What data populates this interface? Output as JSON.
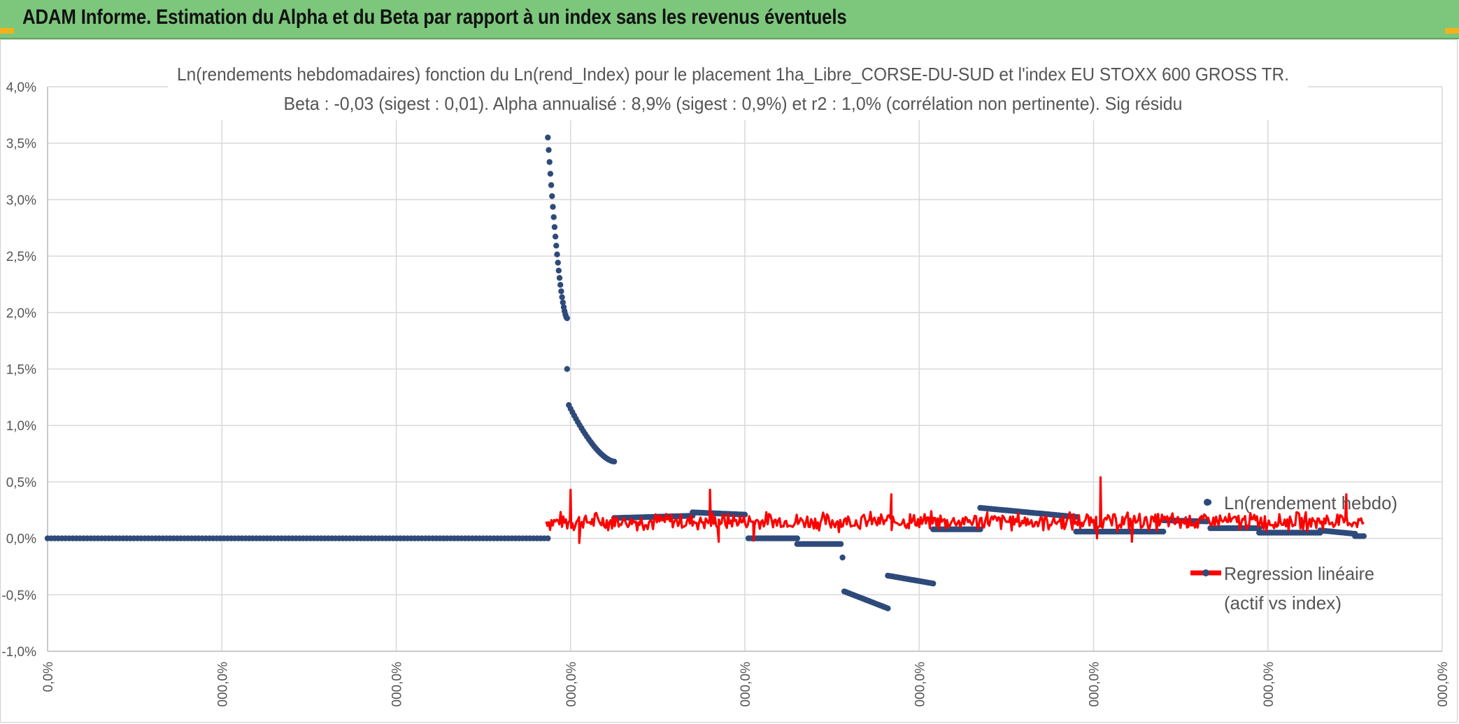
{
  "header": {
    "title": "ADAM Informe. Estimation du Alpha et du Beta par rapport à un index sans les revenus éventuels"
  },
  "colors": {
    "banner": "#7cc77c",
    "scatter": "#2e4a7a",
    "regression": "#ff0000",
    "grid": "#d9d9d9"
  },
  "chart_data": {
    "type": "scatter",
    "title_lines": [
      "Ln(rendements hebdomadaires) fonction du Ln(rend_Index) pour le placement 1ha_Libre_CORSE-DU-SUD et l'index EU STOXX 600 GROSS TR.",
      "Beta : -0,03 (sigest : 0,01). Alpha annualisé : 8,9% (sigest : 0,9%) et r2 : 1,0% (corrélation non pertinente). Sig résidu"
    ],
    "ylim": [
      -1.0,
      4.0
    ],
    "y_ticks": [
      -1.0,
      -0.5,
      0.0,
      0.5,
      1.0,
      1.5,
      2.0,
      2.5,
      3.0,
      3.5,
      4.0
    ],
    "y_tick_labels": [
      "-1,0%",
      "-0,5%",
      "0,0%",
      "0,5%",
      "1,0%",
      "1,5%",
      "2,0%",
      "2,5%",
      "3,0%",
      "3,5%",
      "4,0%"
    ],
    "xlim": [
      0,
      8
    ],
    "x_tick_labels": [
      "0,0%",
      "000,0%",
      "000,0%",
      "000,0%",
      "000,0%",
      "000,0%",
      "000,0%",
      "000,0%",
      "000,0%"
    ],
    "series": [
      {
        "name": "Ln(rendement hebdo)",
        "kind": "scatter",
        "segments": [
          {
            "x0": 0.0,
            "x1": 2.87,
            "y0": 0.0,
            "y1": 0.0,
            "n": 140
          },
          {
            "x0": 2.87,
            "x1": 2.98,
            "y0": 3.55,
            "y1": 1.95,
            "n": 24,
            "curve": "decay"
          },
          {
            "x0": 2.98,
            "x1": 2.99,
            "y0": 1.5,
            "y1": 1.5,
            "n": 1
          },
          {
            "x0": 2.99,
            "x1": 3.25,
            "y0": 1.18,
            "y1": 0.68,
            "n": 26,
            "curve": "decay"
          },
          {
            "x0": 3.25,
            "x1": 3.7,
            "y0": 0.18,
            "y1": 0.2,
            "n": 40
          },
          {
            "x0": 3.7,
            "x1": 4.0,
            "y0": 0.23,
            "y1": 0.21,
            "n": 30
          },
          {
            "x0": 4.02,
            "x1": 4.3,
            "y0": 0.0,
            "y1": 0.0,
            "n": 25
          },
          {
            "x0": 4.3,
            "x1": 4.55,
            "y0": -0.05,
            "y1": -0.05,
            "n": 22
          },
          {
            "x0": 4.56,
            "x1": 4.57,
            "y0": -0.17,
            "y1": -0.17,
            "n": 1
          },
          {
            "x0": 4.57,
            "x1": 4.82,
            "y0": -0.47,
            "y1": -0.62,
            "n": 24
          },
          {
            "x0": 4.82,
            "x1": 5.08,
            "y0": -0.33,
            "y1": -0.4,
            "n": 24
          },
          {
            "x0": 5.08,
            "x1": 5.35,
            "y0": 0.08,
            "y1": 0.08,
            "n": 25
          },
          {
            "x0": 5.35,
            "x1": 5.9,
            "y0": 0.27,
            "y1": 0.19,
            "n": 45
          },
          {
            "x0": 5.9,
            "x1": 6.4,
            "y0": 0.06,
            "y1": 0.06,
            "n": 40
          },
          {
            "x0": 6.4,
            "x1": 6.65,
            "y0": 0.16,
            "y1": 0.15,
            "n": 22
          },
          {
            "x0": 6.66,
            "x1": 6.67,
            "y0": 0.32,
            "y1": 0.32,
            "n": 1
          },
          {
            "x0": 6.67,
            "x1": 6.95,
            "y0": 0.09,
            "y1": 0.09,
            "n": 25
          },
          {
            "x0": 6.95,
            "x1": 7.3,
            "y0": 0.05,
            "y1": 0.05,
            "n": 30
          },
          {
            "x0": 7.3,
            "x1": 7.5,
            "y0": 0.07,
            "y1": 0.04,
            "n": 18
          },
          {
            "x0": 7.5,
            "x1": 7.55,
            "y0": 0.02,
            "y1": 0.02,
            "n": 5
          }
        ]
      },
      {
        "name": "Regression linéaire (actif vs index)",
        "kind": "line",
        "x_range": [
          2.86,
          7.55
        ],
        "mean": 0.15,
        "amplitude": 0.12,
        "spikes": [
          {
            "x": 3.0,
            "y": 0.43
          },
          {
            "x": 3.05,
            "y": -0.04
          },
          {
            "x": 3.8,
            "y": 0.43
          },
          {
            "x": 3.85,
            "y": -0.03
          },
          {
            "x": 4.05,
            "y": -0.02
          },
          {
            "x": 4.84,
            "y": 0.39
          },
          {
            "x": 5.39,
            "y": 0.23
          },
          {
            "x": 6.04,
            "y": 0.54
          },
          {
            "x": 6.02,
            "y": 0.0
          },
          {
            "x": 6.22,
            "y": -0.03
          },
          {
            "x": 7.45,
            "y": 0.39
          }
        ]
      }
    ],
    "legend": [
      {
        "label": "Ln(rendement hebdo)",
        "kind": "scatter"
      },
      {
        "label_line1": "Regression linéaire",
        "label_line2": "(actif vs index)",
        "kind": "line"
      }
    ]
  }
}
